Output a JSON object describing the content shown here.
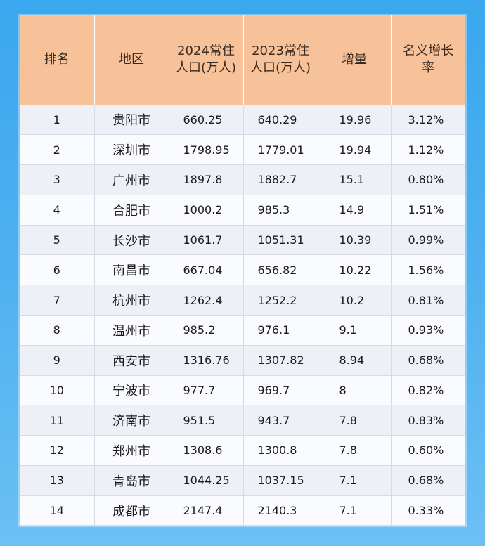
{
  "headers": {
    "rank": "排名",
    "region": "地区",
    "pop2024_line1": "2024常住",
    "pop2024_line2": "人口(万人)",
    "pop2023_line1": "2023常住",
    "pop2023_line2": "人口(万人)",
    "increase": "增量",
    "growth_line1": "名义增长",
    "growth_line2": "率"
  },
  "rows": [
    {
      "rank": "1",
      "city": "贵阳市",
      "pop2024": "660.25",
      "pop2023": "640.29",
      "increase": "19.96",
      "growth": "3.12%"
    },
    {
      "rank": "2",
      "city": "深圳市",
      "pop2024": "1798.95",
      "pop2023": "1779.01",
      "increase": "19.94",
      "growth": "1.12%"
    },
    {
      "rank": "3",
      "city": "广州市",
      "pop2024": "1897.8",
      "pop2023": "1882.7",
      "increase": "15.1",
      "growth": "0.80%"
    },
    {
      "rank": "4",
      "city": "合肥市",
      "pop2024": "1000.2",
      "pop2023": "985.3",
      "increase": "14.9",
      "growth": "1.51%"
    },
    {
      "rank": "5",
      "city": "长沙市",
      "pop2024": "1061.7",
      "pop2023": "1051.31",
      "increase": "10.39",
      "growth": "0.99%"
    },
    {
      "rank": "6",
      "city": "南昌市",
      "pop2024": "667.04",
      "pop2023": "656.82",
      "increase": "10.22",
      "growth": "1.56%"
    },
    {
      "rank": "7",
      "city": "杭州市",
      "pop2024": "1262.4",
      "pop2023": "1252.2",
      "increase": "10.2",
      "growth": "0.81%"
    },
    {
      "rank": "8",
      "city": "温州市",
      "pop2024": "985.2",
      "pop2023": "976.1",
      "increase": "9.1",
      "growth": "0.93%"
    },
    {
      "rank": "9",
      "city": "西安市",
      "pop2024": "1316.76",
      "pop2023": "1307.82",
      "increase": "8.94",
      "growth": "0.68%"
    },
    {
      "rank": "10",
      "city": "宁波市",
      "pop2024": "977.7",
      "pop2023": "969.7",
      "increase": "8",
      "growth": "0.82%"
    },
    {
      "rank": "11",
      "city": "济南市",
      "pop2024": "951.5",
      "pop2023": "943.7",
      "increase": "7.8",
      "growth": "0.83%"
    },
    {
      "rank": "12",
      "city": "郑州市",
      "pop2024": "1308.6",
      "pop2023": "1300.8",
      "increase": "7.8",
      "growth": "0.60%"
    },
    {
      "rank": "13",
      "city": "青岛市",
      "pop2024": "1044.25",
      "pop2023": "1037.15",
      "increase": "7.1",
      "growth": "0.68%"
    },
    {
      "rank": "14",
      "city": "成都市",
      "pop2024": "2147.4",
      "pop2023": "2140.3",
      "increase": "7.1",
      "growth": "0.33%"
    }
  ],
  "colors": {
    "header_bg": "#f7c29a",
    "row_odd_bg": "#eef0f8",
    "row_even_bg": "#fafbfe",
    "page_bg": "#3aa7ee"
  }
}
